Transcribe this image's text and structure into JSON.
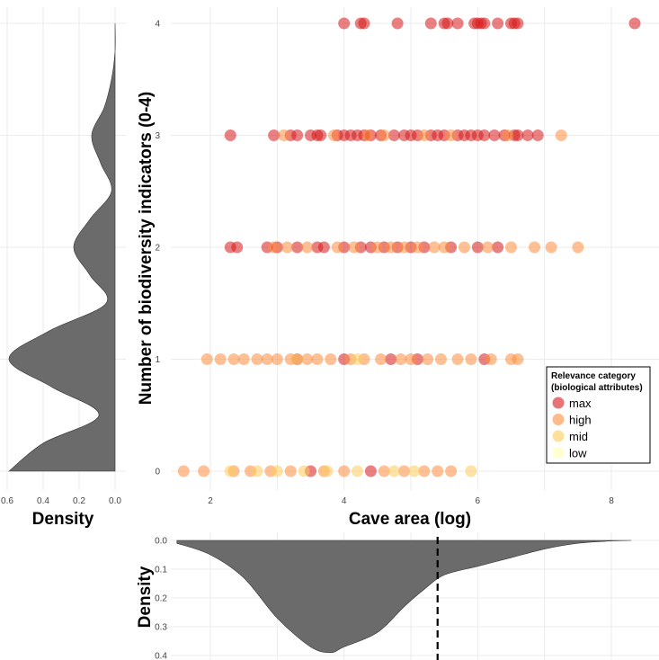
{
  "chart_data": [
    {
      "id": "scatter",
      "type": "scatter",
      "xlabel": "Cave area (log)",
      "ylabel": "Number of biodiversity indicators (0-4)",
      "xlim": [
        1.5,
        8.5
      ],
      "ylim": [
        0,
        4
      ],
      "x_ticks": [
        "2",
        "4",
        "6",
        "8"
      ],
      "y_ticks": [
        "0",
        "1",
        "2",
        "3",
        "4"
      ],
      "legend": {
        "title_line1": "Relevance category",
        "title_line2": "(biological attributes)",
        "position": "right",
        "entries": [
          {
            "name": "max",
            "color": "#d7191c"
          },
          {
            "name": "high",
            "color": "#fd8d3c"
          },
          {
            "name": "mid",
            "color": "#fecc5c"
          },
          {
            "name": "low",
            "color": "#ffffb2"
          }
        ]
      },
      "series": [
        {
          "name": "max",
          "color": "#d7191c",
          "points": [
            {
              "x": 4.0,
              "y": 4
            },
            {
              "x": 4.25,
              "y": 4
            },
            {
              "x": 4.3,
              "y": 4
            },
            {
              "x": 4.8,
              "y": 4
            },
            {
              "x": 5.3,
              "y": 4
            },
            {
              "x": 5.5,
              "y": 4
            },
            {
              "x": 5.55,
              "y": 4
            },
            {
              "x": 5.7,
              "y": 4
            },
            {
              "x": 5.95,
              "y": 4
            },
            {
              "x": 6.0,
              "y": 4
            },
            {
              "x": 6.05,
              "y": 4
            },
            {
              "x": 6.1,
              "y": 4
            },
            {
              "x": 6.3,
              "y": 4
            },
            {
              "x": 6.5,
              "y": 4
            },
            {
              "x": 6.55,
              "y": 4
            },
            {
              "x": 6.6,
              "y": 4
            },
            {
              "x": 8.35,
              "y": 4
            },
            {
              "x": 2.3,
              "y": 3
            },
            {
              "x": 2.95,
              "y": 3
            },
            {
              "x": 3.2,
              "y": 3
            },
            {
              "x": 3.3,
              "y": 3
            },
            {
              "x": 3.5,
              "y": 3
            },
            {
              "x": 3.6,
              "y": 3
            },
            {
              "x": 3.65,
              "y": 3
            },
            {
              "x": 3.9,
              "y": 3
            },
            {
              "x": 4.0,
              "y": 3
            },
            {
              "x": 4.1,
              "y": 3
            },
            {
              "x": 4.2,
              "y": 3
            },
            {
              "x": 4.3,
              "y": 3
            },
            {
              "x": 4.4,
              "y": 3
            },
            {
              "x": 4.55,
              "y": 3
            },
            {
              "x": 4.75,
              "y": 3
            },
            {
              "x": 4.9,
              "y": 3
            },
            {
              "x": 5.0,
              "y": 3
            },
            {
              "x": 5.1,
              "y": 3
            },
            {
              "x": 5.3,
              "y": 3
            },
            {
              "x": 5.4,
              "y": 3
            },
            {
              "x": 5.5,
              "y": 3
            },
            {
              "x": 5.7,
              "y": 3
            },
            {
              "x": 5.8,
              "y": 3
            },
            {
              "x": 5.9,
              "y": 3
            },
            {
              "x": 6.0,
              "y": 3
            },
            {
              "x": 6.1,
              "y": 3
            },
            {
              "x": 6.25,
              "y": 3
            },
            {
              "x": 6.4,
              "y": 3
            },
            {
              "x": 6.55,
              "y": 3
            },
            {
              "x": 6.6,
              "y": 3
            },
            {
              "x": 6.75,
              "y": 3
            },
            {
              "x": 6.9,
              "y": 3
            },
            {
              "x": 2.3,
              "y": 2
            },
            {
              "x": 2.4,
              "y": 2
            },
            {
              "x": 2.85,
              "y": 2
            },
            {
              "x": 3.0,
              "y": 2
            },
            {
              "x": 3.3,
              "y": 2
            },
            {
              "x": 3.6,
              "y": 2
            },
            {
              "x": 3.7,
              "y": 2
            },
            {
              "x": 4.0,
              "y": 2
            },
            {
              "x": 4.25,
              "y": 2
            },
            {
              "x": 4.4,
              "y": 2
            },
            {
              "x": 4.6,
              "y": 2
            },
            {
              "x": 4.8,
              "y": 2
            },
            {
              "x": 5.0,
              "y": 2
            },
            {
              "x": 5.2,
              "y": 2
            },
            {
              "x": 5.6,
              "y": 2
            },
            {
              "x": 6.0,
              "y": 2
            },
            {
              "x": 6.3,
              "y": 2
            },
            {
              "x": 3.3,
              "y": 1
            },
            {
              "x": 4.0,
              "y": 1
            },
            {
              "x": 4.7,
              "y": 1
            },
            {
              "x": 5.1,
              "y": 1
            },
            {
              "x": 6.1,
              "y": 1
            },
            {
              "x": 3.5,
              "y": 0
            },
            {
              "x": 4.4,
              "y": 0
            }
          ]
        },
        {
          "name": "high",
          "color": "#fd8d3c",
          "points": [
            {
              "x": 3.1,
              "y": 3
            },
            {
              "x": 3.85,
              "y": 3
            },
            {
              "x": 4.35,
              "y": 3
            },
            {
              "x": 4.6,
              "y": 3
            },
            {
              "x": 5.2,
              "y": 3
            },
            {
              "x": 5.6,
              "y": 3
            },
            {
              "x": 6.45,
              "y": 3
            },
            {
              "x": 7.25,
              "y": 3
            },
            {
              "x": 2.95,
              "y": 2
            },
            {
              "x": 3.15,
              "y": 2
            },
            {
              "x": 3.45,
              "y": 2
            },
            {
              "x": 3.9,
              "y": 2
            },
            {
              "x": 4.15,
              "y": 2
            },
            {
              "x": 4.5,
              "y": 2
            },
            {
              "x": 4.7,
              "y": 2
            },
            {
              "x": 4.9,
              "y": 2
            },
            {
              "x": 5.1,
              "y": 2
            },
            {
              "x": 5.35,
              "y": 2
            },
            {
              "x": 5.5,
              "y": 2
            },
            {
              "x": 5.8,
              "y": 2
            },
            {
              "x": 6.15,
              "y": 2
            },
            {
              "x": 6.5,
              "y": 2
            },
            {
              "x": 6.85,
              "y": 2
            },
            {
              "x": 7.1,
              "y": 2
            },
            {
              "x": 7.5,
              "y": 2
            },
            {
              "x": 1.95,
              "y": 1
            },
            {
              "x": 2.15,
              "y": 1
            },
            {
              "x": 2.35,
              "y": 1
            },
            {
              "x": 2.5,
              "y": 1
            },
            {
              "x": 2.7,
              "y": 1
            },
            {
              "x": 2.85,
              "y": 1
            },
            {
              "x": 3.0,
              "y": 1
            },
            {
              "x": 3.2,
              "y": 1
            },
            {
              "x": 3.45,
              "y": 1
            },
            {
              "x": 3.6,
              "y": 1
            },
            {
              "x": 3.8,
              "y": 1
            },
            {
              "x": 4.1,
              "y": 1
            },
            {
              "x": 4.3,
              "y": 1
            },
            {
              "x": 4.55,
              "y": 1
            },
            {
              "x": 4.85,
              "y": 1
            },
            {
              "x": 5.0,
              "y": 1
            },
            {
              "x": 5.25,
              "y": 1
            },
            {
              "x": 5.45,
              "y": 1
            },
            {
              "x": 5.7,
              "y": 1
            },
            {
              "x": 5.9,
              "y": 1
            },
            {
              "x": 6.2,
              "y": 1
            },
            {
              "x": 6.5,
              "y": 1
            },
            {
              "x": 6.6,
              "y": 1
            },
            {
              "x": 1.6,
              "y": 0
            },
            {
              "x": 1.9,
              "y": 0
            },
            {
              "x": 2.35,
              "y": 0
            },
            {
              "x": 2.6,
              "y": 0
            },
            {
              "x": 2.9,
              "y": 0
            },
            {
              "x": 3.2,
              "y": 0
            },
            {
              "x": 3.7,
              "y": 0
            },
            {
              "x": 4.0,
              "y": 0
            },
            {
              "x": 4.6,
              "y": 0
            },
            {
              "x": 4.9,
              "y": 0
            },
            {
              "x": 5.2,
              "y": 0
            },
            {
              "x": 5.4,
              "y": 0
            },
            {
              "x": 5.6,
              "y": 0
            }
          ]
        },
        {
          "name": "mid",
          "color": "#fecc5c",
          "points": [
            {
              "x": 3.3,
              "y": 1
            },
            {
              "x": 4.2,
              "y": 1
            },
            {
              "x": 2.3,
              "y": 0
            },
            {
              "x": 2.7,
              "y": 0
            },
            {
              "x": 3.0,
              "y": 0
            },
            {
              "x": 3.4,
              "y": 0
            },
            {
              "x": 3.75,
              "y": 0
            },
            {
              "x": 4.2,
              "y": 0
            },
            {
              "x": 4.75,
              "y": 0
            },
            {
              "x": 5.05,
              "y": 0
            },
            {
              "x": 5.9,
              "y": 0
            }
          ]
        }
      ]
    },
    {
      "id": "left-density",
      "type": "area",
      "xlabel": "Density",
      "x_ticks": [
        "0.6",
        "0.4",
        "0.2",
        "0.0"
      ],
      "xlim": [
        0,
        0.6
      ],
      "x_reversed": true,
      "ylim": [
        0,
        4
      ],
      "y": [
        0,
        0.25,
        0.5,
        0.75,
        1.0,
        1.25,
        1.5,
        1.75,
        2.0,
        2.25,
        2.5,
        2.75,
        3.0,
        3.25,
        3.5,
        3.75,
        4.0
      ],
      "density": [
        0.59,
        0.4,
        0.09,
        0.35,
        0.59,
        0.37,
        0.05,
        0.14,
        0.23,
        0.14,
        0.02,
        0.08,
        0.13,
        0.06,
        0.02,
        0.0,
        0.0
      ],
      "fill": "#6b6b6b"
    },
    {
      "id": "bottom-density",
      "type": "area",
      "ylabel": "Density",
      "y_ticks": [
        "0.0",
        "0.1",
        "0.2",
        "0.3",
        "0.4"
      ],
      "ylim": [
        0,
        0.4
      ],
      "y_reversed": true,
      "xlim": [
        1.5,
        8.5
      ],
      "x": [
        1.5,
        2.0,
        2.5,
        3.0,
        3.5,
        3.8,
        4.0,
        4.5,
        4.9,
        5.2,
        5.5,
        6.0,
        6.5,
        7.0,
        7.5,
        8.0,
        8.3
      ],
      "density": [
        0.01,
        0.05,
        0.13,
        0.27,
        0.37,
        0.39,
        0.37,
        0.32,
        0.23,
        0.17,
        0.12,
        0.09,
        0.06,
        0.03,
        0.01,
        0.002,
        0.0
      ],
      "reference_line_x": 5.4,
      "fill": "#6b6b6b"
    }
  ]
}
